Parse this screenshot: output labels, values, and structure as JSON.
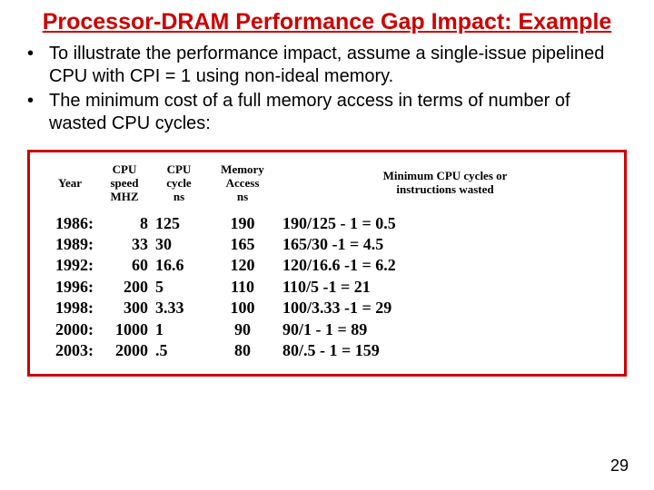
{
  "title": "Processor-DRAM  Performance Gap Impact: Example",
  "bullets": [
    "To illustrate the performance impact, assume a single-issue pipelined  CPU with CPI = 1  using non-ideal memory.",
    "The minimum cost of a full memory access in terms of number of wasted CPU cycles:"
  ],
  "headers": {
    "year": "Year",
    "speed": "CPU\nspeed\nMHZ",
    "cycle": "CPU\ncycle\nns",
    "mem": "Memory\nAccess\nns",
    "min": "Minimum CPU cycles  or\ninstructions wasted"
  },
  "rows": [
    {
      "year": "1986:",
      "speed": "8",
      "cycle": "125",
      "mem": "190",
      "min": "190/125 - 1    =    0.5"
    },
    {
      "year": "1989:",
      "speed": "33",
      "cycle": "30",
      "mem": "165",
      "min": "165/30 -1        =   4.5"
    },
    {
      "year": "1992:",
      "speed": "60",
      "cycle": "16.6",
      "mem": "120",
      "min": "120/16.6  -1  =    6.2"
    },
    {
      "year": "1996:",
      "speed": "200",
      "cycle": "5",
      "mem": "110",
      "min": "110/5 -1         =    21"
    },
    {
      "year": "1998:",
      "speed": "300",
      "cycle": "3.33",
      "mem": "100",
      "min": "100/3.33 -1    =    29"
    },
    {
      "year": "2000:",
      "speed": "1000",
      "cycle": "1",
      "mem": "90",
      "min": "90/1 - 1          =   89"
    },
    {
      "year": "2003:",
      "speed": "2000",
      "cycle": ".5",
      "mem": "80",
      "min": "80/.5 - 1       =     159"
    }
  ],
  "pageNumber": "29",
  "colors": {
    "title": "#cc0000",
    "border": "#cc0000",
    "text": "#000000",
    "background": "#ffffff"
  }
}
